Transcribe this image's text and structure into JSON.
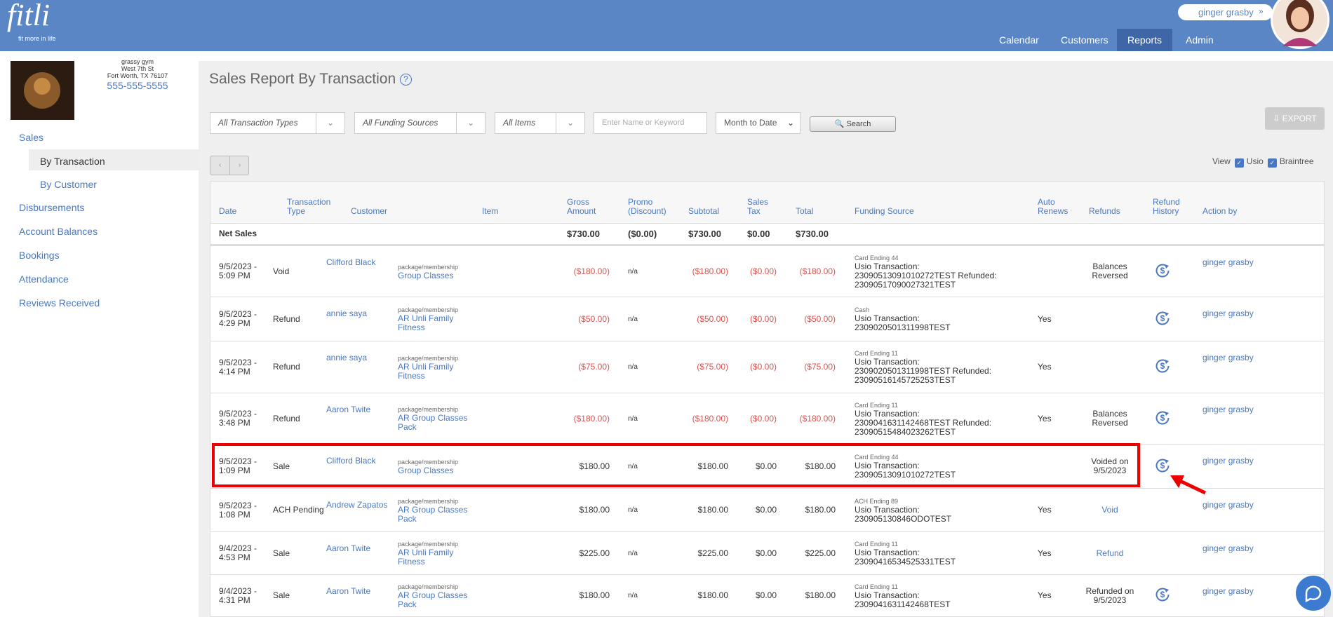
{
  "header": {
    "logo": "fitli",
    "tagline": "fit more in life",
    "user": "ginger grasby",
    "nav": [
      "Calendar",
      "Customers",
      "Reports",
      "Admin"
    ],
    "active_nav": 2
  },
  "sidebar": {
    "gym": {
      "name": "grassy gym",
      "street": "West 7th St",
      "city": "Fort Worth, TX 76107",
      "phone": "555-555-5555"
    },
    "menu": [
      {
        "label": "Sales",
        "children": [
          {
            "label": "By Transaction",
            "active": true
          },
          {
            "label": "By Customer"
          }
        ]
      },
      {
        "label": "Disbursements"
      },
      {
        "label": "Account Balances"
      },
      {
        "label": "Bookings"
      },
      {
        "label": "Attendance"
      },
      {
        "label": "Reviews Received"
      }
    ]
  },
  "main": {
    "title": "Sales Report By Transaction",
    "filters": {
      "types": "All Transaction Types",
      "funding": "All Funding Sources",
      "items": "All Items",
      "keyword_placeholder": "Enter Name or Keyword",
      "period": "Month to Date",
      "search": "Search",
      "export": "EXPORT"
    },
    "view": {
      "label": "View",
      "usio": "Usio",
      "braintree": "Braintree",
      "usio_checked": true,
      "braintree_checked": true
    }
  },
  "table": {
    "columns": [
      "Date",
      "Transaction Type",
      "Customer",
      "Item",
      "Gross Amount",
      "Promo (Discount)",
      "Subtotal",
      "Sales Tax",
      "Total",
      "Funding Source",
      "Auto Renews",
      "Refunds",
      "Refund History",
      "Action by"
    ],
    "net_sales": {
      "label": "Net Sales",
      "gross": "$730.00",
      "promo": "($0.00)",
      "subtotal": "$730.00",
      "tax": "$0.00",
      "total": "$730.00"
    },
    "highlighted_row": 4,
    "rows": [
      {
        "date": "9/5/2023 - 5:09 PM",
        "type": "Void",
        "customer": "Clifford Black",
        "item_kind": "package/membership",
        "item": "Group Classes",
        "gross": "($180.00)",
        "promo": "n/a",
        "subtotal": "($180.00)",
        "tax": "($0.00)",
        "total": "($180.00)",
        "funding_kind": "Card Ending 44",
        "funding": "Usio Transaction: 23090513091010272TEST Refunded: 23090517090027321TEST",
        "refunds": "Balances Reversed",
        "refund_history": true,
        "action_by": "ginger grasby",
        "negative": true
      },
      {
        "date": "9/5/2023 - 4:29 PM",
        "type": "Refund",
        "customer": "annie saya",
        "item_kind": "package/membership",
        "item": "AR Unli Family Fitness",
        "gross": "($50.00)",
        "promo": "n/a",
        "subtotal": "($50.00)",
        "tax": "($0.00)",
        "total": "($50.00)",
        "funding_kind": "Cash",
        "funding": "Usio Transaction: 2309020501311998TEST",
        "auto_renews": "Yes",
        "refund_history": true,
        "action_by": "ginger grasby",
        "negative": true
      },
      {
        "date": "9/5/2023 - 4:14 PM",
        "type": "Refund",
        "customer": "annie saya",
        "item_kind": "package/membership",
        "item": "AR Unli Family Fitness",
        "gross": "($75.00)",
        "promo": "n/a",
        "subtotal": "($75.00)",
        "tax": "($0.00)",
        "total": "($75.00)",
        "funding_kind": "Card Ending 11",
        "funding": "Usio Transaction: 2309020501311998TEST Refunded: 23090516145725253TEST",
        "auto_renews": "Yes",
        "refund_history": true,
        "action_by": "ginger grasby",
        "negative": true
      },
      {
        "date": "9/5/2023 - 3:48 PM",
        "type": "Refund",
        "customer": "Aaron Twite",
        "item_kind": "package/membership",
        "item": "AR Group Classes Pack",
        "gross": "($180.00)",
        "promo": "n/a",
        "subtotal": "($180.00)",
        "tax": "($0.00)",
        "total": "($180.00)",
        "funding_kind": "Card Ending 11",
        "funding": "Usio Transaction: 2309041631142468TEST Refunded: 23090515484023262TEST",
        "auto_renews": "Yes",
        "refunds": "Balances Reversed",
        "refund_history": true,
        "action_by": "ginger grasby",
        "negative": true
      },
      {
        "date": "9/5/2023 - 1:09 PM",
        "type": "Sale",
        "customer": "Clifford Black",
        "item_kind": "package/membership",
        "item": "Group Classes",
        "gross": "$180.00",
        "promo": "n/a",
        "subtotal": "$180.00",
        "tax": "$0.00",
        "total": "$180.00",
        "funding_kind": "Card Ending 44",
        "funding": "Usio Transaction: 23090513091010272TEST",
        "refunds": "Voided on 9/5/2023",
        "refund_history": true,
        "action_by": "ginger grasby"
      },
      {
        "date": "9/5/2023 - 1:08 PM",
        "type": "ACH Pending",
        "customer": "Andrew Zapatos",
        "item_kind": "package/membership",
        "item": "AR Group Classes Pack",
        "gross": "$180.00",
        "promo": "n/a",
        "subtotal": "$180.00",
        "tax": "$0.00",
        "total": "$180.00",
        "funding_kind": "ACH Ending 89",
        "funding": "Usio Transaction: 230905130846ODOTEST",
        "auto_renews": "Yes",
        "refunds": "Void",
        "refunds_link": true,
        "action_by": "ginger grasby"
      },
      {
        "date": "9/4/2023 - 4:53 PM",
        "type": "Sale",
        "customer": "Aaron Twite",
        "item_kind": "package/membership",
        "item": "AR Unli Family Fitness",
        "gross": "$225.00",
        "promo": "n/a",
        "subtotal": "$225.00",
        "tax": "$0.00",
        "total": "$225.00",
        "funding_kind": "Card Ending 11",
        "funding": "Usio Transaction: 23090416534525331TEST",
        "auto_renews": "Yes",
        "refunds": "Refund",
        "refunds_link": true,
        "action_by": "ginger grasby"
      },
      {
        "date": "9/4/2023 - 4:31 PM",
        "type": "Sale",
        "customer": "Aaron Twite",
        "item_kind": "package/membership",
        "item": "AR Group Classes Pack",
        "gross": "$180.00",
        "promo": "n/a",
        "subtotal": "$180.00",
        "tax": "$0.00",
        "total": "$180.00",
        "funding_kind": "Card Ending 11",
        "funding": "Usio Transaction: 2309041631142468TEST",
        "auto_renews": "Yes",
        "refunds": "Refunded on 9/5/2023",
        "refund_history": true,
        "action_by": "ginger grasby"
      }
    ]
  }
}
